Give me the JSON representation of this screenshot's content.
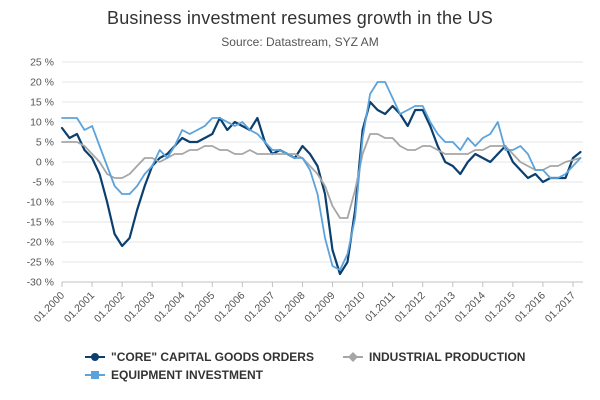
{
  "header": {
    "title": "Business investment resumes growth in the US",
    "subtitle": "Source: Datastream, SYZ AM"
  },
  "legend": {
    "items": [
      {
        "label": "\"CORE\" CAPITAL GOODS ORDERS",
        "color": "#0b3f6e",
        "marker": "circle"
      },
      {
        "label": "INDUSTRIAL PRODUCTION",
        "color": "#a6a6a6",
        "marker": "diamond"
      },
      {
        "label": "EQUIPMENT INVESTMENT",
        "color": "#5ba3dc",
        "marker": "square"
      }
    ]
  },
  "chart_data": {
    "type": "line",
    "title": "Business investment resumes growth in the US",
    "subtitle": "Source: Datastream, SYZ AM",
    "xlabel": "",
    "ylabel": "",
    "xlim": [
      "2000-01",
      "2017-05"
    ],
    "ylim": [
      -30,
      25
    ],
    "y_tick_step": 5,
    "y_tick_suffix": " %",
    "x_tick_labels": [
      "01.2000",
      "01.2001",
      "01.2002",
      "01.2003",
      "01.2004",
      "01.2005",
      "01.2006",
      "01.2007",
      "01.2008",
      "01.2009",
      "01.2010",
      "01.2011",
      "01.2012",
      "01.2013",
      "01.2014",
      "01.2015",
      "01.2016",
      "01.2017"
    ],
    "grid": true,
    "legend_position": "bottom",
    "series": [
      {
        "name": "\"CORE\" CAPITAL GOODS ORDERS",
        "color": "#0b3f6e",
        "marker": "circle",
        "points": [
          [
            "2000-01",
            8.5
          ],
          [
            "2000-04",
            6
          ],
          [
            "2000-07",
            7
          ],
          [
            "2000-10",
            3
          ],
          [
            "2001-01",
            1
          ],
          [
            "2001-04",
            -3
          ],
          [
            "2001-07",
            -10
          ],
          [
            "2001-10",
            -18
          ],
          [
            "2002-01",
            -21
          ],
          [
            "2002-04",
            -19
          ],
          [
            "2002-07",
            -12
          ],
          [
            "2002-10",
            -6
          ],
          [
            "2003-01",
            -1
          ],
          [
            "2003-04",
            1
          ],
          [
            "2003-07",
            2
          ],
          [
            "2003-10",
            4
          ],
          [
            "2004-01",
            6
          ],
          [
            "2004-04",
            5
          ],
          [
            "2004-07",
            5
          ],
          [
            "2004-10",
            6
          ],
          [
            "2005-01",
            7
          ],
          [
            "2005-04",
            11
          ],
          [
            "2005-07",
            8
          ],
          [
            "2005-10",
            10
          ],
          [
            "2006-01",
            9
          ],
          [
            "2006-04",
            8
          ],
          [
            "2006-07",
            11
          ],
          [
            "2006-10",
            5
          ],
          [
            "2007-01",
            2
          ],
          [
            "2007-04",
            3
          ],
          [
            "2007-07",
            2
          ],
          [
            "2007-10",
            1
          ],
          [
            "2008-01",
            4
          ],
          [
            "2008-04",
            2
          ],
          [
            "2008-07",
            -1
          ],
          [
            "2008-10",
            -8
          ],
          [
            "2009-01",
            -22
          ],
          [
            "2009-04",
            -28
          ],
          [
            "2009-07",
            -25
          ],
          [
            "2009-10",
            -12
          ],
          [
            "2010-01",
            8
          ],
          [
            "2010-04",
            15
          ],
          [
            "2010-07",
            13
          ],
          [
            "2010-10",
            12
          ],
          [
            "2011-01",
            14
          ],
          [
            "2011-04",
            12
          ],
          [
            "2011-07",
            9
          ],
          [
            "2011-10",
            13
          ],
          [
            "2012-01",
            13
          ],
          [
            "2012-04",
            9
          ],
          [
            "2012-07",
            4
          ],
          [
            "2012-10",
            0
          ],
          [
            "2013-01",
            -1
          ],
          [
            "2013-04",
            -3
          ],
          [
            "2013-07",
            0
          ],
          [
            "2013-10",
            2
          ],
          [
            "2014-01",
            1
          ],
          [
            "2014-04",
            0
          ],
          [
            "2014-07",
            2
          ],
          [
            "2014-10",
            4
          ],
          [
            "2015-01",
            0
          ],
          [
            "2015-04",
            -2
          ],
          [
            "2015-07",
            -4
          ],
          [
            "2015-10",
            -3
          ],
          [
            "2016-01",
            -5
          ],
          [
            "2016-04",
            -4
          ],
          [
            "2016-07",
            -4
          ],
          [
            "2016-10",
            -4
          ],
          [
            "2017-01",
            1
          ],
          [
            "2017-04",
            2.5
          ]
        ]
      },
      {
        "name": "INDUSTRIAL PRODUCTION",
        "color": "#a6a6a6",
        "marker": "diamond",
        "points": [
          [
            "2000-01",
            5
          ],
          [
            "2000-04",
            5
          ],
          [
            "2000-07",
            5
          ],
          [
            "2000-10",
            4
          ],
          [
            "2001-01",
            2
          ],
          [
            "2001-04",
            0
          ],
          [
            "2001-07",
            -3
          ],
          [
            "2001-10",
            -4
          ],
          [
            "2002-01",
            -4
          ],
          [
            "2002-04",
            -3
          ],
          [
            "2002-07",
            -1
          ],
          [
            "2002-10",
            1
          ],
          [
            "2003-01",
            1
          ],
          [
            "2003-04",
            0
          ],
          [
            "2003-07",
            1
          ],
          [
            "2003-10",
            2
          ],
          [
            "2004-01",
            2
          ],
          [
            "2004-04",
            3
          ],
          [
            "2004-07",
            3
          ],
          [
            "2004-10",
            4
          ],
          [
            "2005-01",
            4
          ],
          [
            "2005-04",
            3
          ],
          [
            "2005-07",
            3
          ],
          [
            "2005-10",
            2
          ],
          [
            "2006-01",
            2
          ],
          [
            "2006-04",
            3
          ],
          [
            "2006-07",
            2
          ],
          [
            "2006-10",
            2
          ],
          [
            "2007-01",
            2
          ],
          [
            "2007-04",
            2
          ],
          [
            "2007-07",
            2
          ],
          [
            "2007-10",
            2
          ],
          [
            "2008-01",
            1
          ],
          [
            "2008-04",
            -1
          ],
          [
            "2008-07",
            -3
          ],
          [
            "2008-10",
            -6
          ],
          [
            "2009-01",
            -11
          ],
          [
            "2009-04",
            -14
          ],
          [
            "2009-07",
            -14
          ],
          [
            "2009-10",
            -7
          ],
          [
            "2010-01",
            2
          ],
          [
            "2010-04",
            7
          ],
          [
            "2010-07",
            7
          ],
          [
            "2010-10",
            6
          ],
          [
            "2011-01",
            6
          ],
          [
            "2011-04",
            4
          ],
          [
            "2011-07",
            3
          ],
          [
            "2011-10",
            3
          ],
          [
            "2012-01",
            4
          ],
          [
            "2012-04",
            4
          ],
          [
            "2012-07",
            3
          ],
          [
            "2012-10",
            2
          ],
          [
            "2013-01",
            2
          ],
          [
            "2013-04",
            2
          ],
          [
            "2013-07",
            2
          ],
          [
            "2013-10",
            3
          ],
          [
            "2014-01",
            3
          ],
          [
            "2014-04",
            4
          ],
          [
            "2014-07",
            4
          ],
          [
            "2014-10",
            4
          ],
          [
            "2015-01",
            2
          ],
          [
            "2015-04",
            0
          ],
          [
            "2015-07",
            -1
          ],
          [
            "2015-10",
            -2
          ],
          [
            "2016-01",
            -2
          ],
          [
            "2016-04",
            -1
          ],
          [
            "2016-07",
            -1
          ],
          [
            "2016-10",
            0
          ],
          [
            "2017-01",
            0.5
          ],
          [
            "2017-04",
            1
          ]
        ]
      },
      {
        "name": "EQUIPMENT INVESTMENT",
        "color": "#5ba3dc",
        "marker": "square",
        "points": [
          [
            "2000-01",
            11
          ],
          [
            "2000-04",
            11
          ],
          [
            "2000-07",
            11
          ],
          [
            "2000-10",
            8
          ],
          [
            "2001-01",
            9
          ],
          [
            "2001-04",
            4
          ],
          [
            "2001-07",
            -1
          ],
          [
            "2001-10",
            -6
          ],
          [
            "2002-01",
            -8
          ],
          [
            "2002-04",
            -8
          ],
          [
            "2002-07",
            -6
          ],
          [
            "2002-10",
            -3
          ],
          [
            "2003-01",
            -1
          ],
          [
            "2003-04",
            3
          ],
          [
            "2003-07",
            1
          ],
          [
            "2003-10",
            4
          ],
          [
            "2004-01",
            8
          ],
          [
            "2004-04",
            7
          ],
          [
            "2004-07",
            8
          ],
          [
            "2004-10",
            9
          ],
          [
            "2005-01",
            11
          ],
          [
            "2005-04",
            11
          ],
          [
            "2005-07",
            10
          ],
          [
            "2005-10",
            9
          ],
          [
            "2006-01",
            10
          ],
          [
            "2006-04",
            8
          ],
          [
            "2006-07",
            7
          ],
          [
            "2006-10",
            5
          ],
          [
            "2007-01",
            3
          ],
          [
            "2007-04",
            3
          ],
          [
            "2007-07",
            2
          ],
          [
            "2007-10",
            1
          ],
          [
            "2008-01",
            1
          ],
          [
            "2008-04",
            -2
          ],
          [
            "2008-07",
            -8
          ],
          [
            "2008-10",
            -19
          ],
          [
            "2009-01",
            -26
          ],
          [
            "2009-04",
            -27
          ],
          [
            "2009-07",
            -23
          ],
          [
            "2009-10",
            -14
          ],
          [
            "2010-01",
            6
          ],
          [
            "2010-04",
            17
          ],
          [
            "2010-07",
            20
          ],
          [
            "2010-10",
            20
          ],
          [
            "2011-01",
            16
          ],
          [
            "2011-04",
            12
          ],
          [
            "2011-07",
            13
          ],
          [
            "2011-10",
            14
          ],
          [
            "2012-01",
            14
          ],
          [
            "2012-04",
            10
          ],
          [
            "2012-07",
            7
          ],
          [
            "2012-10",
            5
          ],
          [
            "2013-01",
            5
          ],
          [
            "2013-04",
            3
          ],
          [
            "2013-07",
            6
          ],
          [
            "2013-10",
            4
          ],
          [
            "2014-01",
            6
          ],
          [
            "2014-04",
            7
          ],
          [
            "2014-07",
            10
          ],
          [
            "2014-10",
            3
          ],
          [
            "2015-01",
            3
          ],
          [
            "2015-04",
            4
          ],
          [
            "2015-07",
            2
          ],
          [
            "2015-10",
            -2
          ],
          [
            "2016-01",
            -2
          ],
          [
            "2016-04",
            -4
          ],
          [
            "2016-07",
            -4
          ],
          [
            "2016-10",
            -3
          ],
          [
            "2017-01",
            -1
          ],
          [
            "2017-04",
            1
          ]
        ]
      }
    ]
  }
}
